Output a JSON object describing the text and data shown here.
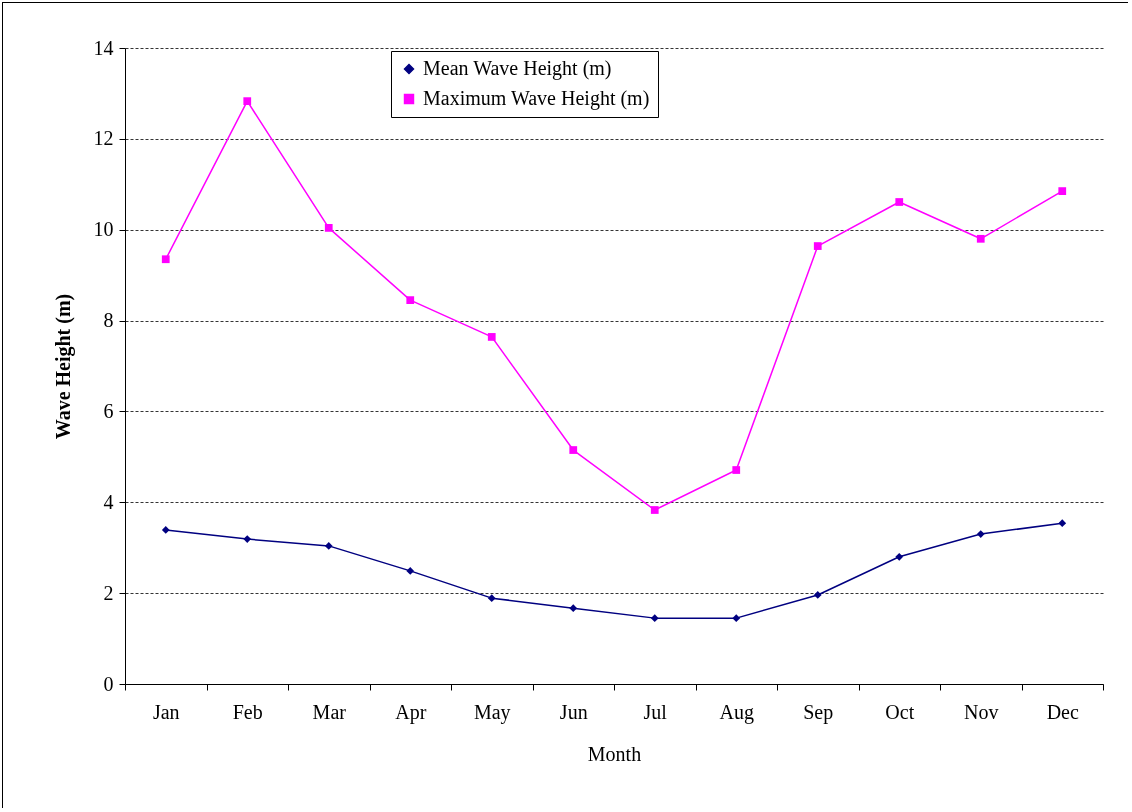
{
  "chart_data": {
    "type": "line",
    "xlabel": "Month",
    "ylabel": "Wave Height (m)",
    "categories": [
      "Jan",
      "Feb",
      "Mar",
      "Apr",
      "May",
      "Jun",
      "Jul",
      "Aug",
      "Sep",
      "Oct",
      "Nov",
      "Dec"
    ],
    "series": [
      {
        "name": "Mean Wave Height (m)",
        "color": "#000080",
        "marker": "diamond",
        "values": [
          3.39,
          3.19,
          3.04,
          2.49,
          1.89,
          1.67,
          1.45,
          1.45,
          1.96,
          2.8,
          3.3,
          3.54
        ]
      },
      {
        "name": "Maximum Wave Height (m)",
        "color": "#ff00ff",
        "marker": "square",
        "values": [
          9.35,
          12.83,
          10.04,
          8.45,
          7.64,
          5.15,
          3.83,
          4.71,
          9.64,
          10.61,
          9.8,
          10.85
        ]
      }
    ],
    "ylim": [
      0,
      14
    ],
    "yticks": [
      0,
      2,
      4,
      6,
      8,
      10,
      12,
      14
    ],
    "grid": "y",
    "legend": "top",
    "line_style": "solid"
  }
}
